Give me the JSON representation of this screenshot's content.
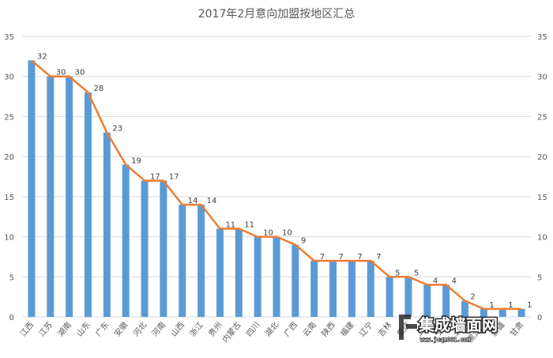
{
  "chart_data": {
    "type": "bar",
    "title": "2017年2月意向加盟按地区汇总",
    "categories": [
      "江西",
      "江苏",
      "湖南",
      "山东",
      "广东",
      "安徽",
      "河北",
      "河南",
      "山西",
      "浙江",
      "贵州",
      "内蒙古",
      "四川",
      "湖北",
      "广西",
      "云南",
      "陕西",
      "福建",
      "辽宁",
      "吉林",
      "重庆",
      "上海",
      "宁夏",
      "北京",
      "黑龙江",
      "新疆",
      "甘肃"
    ],
    "series": [
      {
        "type": "bar",
        "values": [
          32,
          30,
          30,
          28,
          23,
          19,
          17,
          17,
          14,
          14,
          11,
          11,
          10,
          10,
          9,
          7,
          7,
          7,
          7,
          5,
          5,
          4,
          4,
          2,
          1,
          1,
          1
        ],
        "color": "#5b9bd5"
      },
      {
        "type": "line",
        "values": [
          32,
          30,
          30,
          28,
          23,
          19,
          17,
          17,
          14,
          14,
          11,
          11,
          10,
          10,
          9,
          7,
          7,
          7,
          7,
          5,
          5,
          4,
          4,
          2,
          1,
          1,
          1
        ],
        "color": "#ed7d31"
      }
    ],
    "ylim": [
      0,
      35
    ],
    "yticks": [
      0,
      5,
      10,
      15,
      20,
      25,
      30,
      35
    ],
    "secondary_axis": true,
    "grid": true,
    "xlabel": "",
    "ylabel": ""
  },
  "watermark": {
    "brand": "集成墙面网",
    "url": "www.jcqm001.com"
  }
}
